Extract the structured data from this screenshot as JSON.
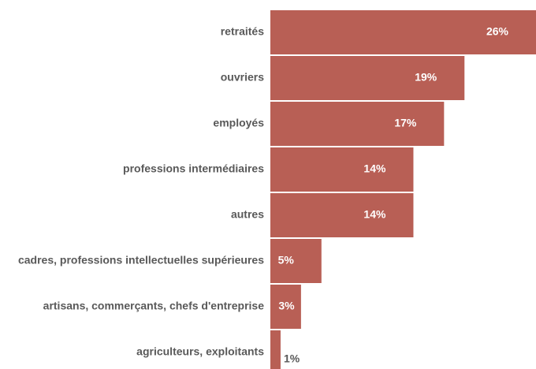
{
  "colors": {
    "bar": "#b85f55",
    "label_inside": "#ffffff",
    "label_outside": "#595959",
    "category_text": "#595959"
  },
  "chart_data": {
    "type": "bar",
    "orientation": "horizontal",
    "categories": [
      "retraités",
      "ouvriers",
      "employés",
      "professions intermédiaires",
      "autres",
      "cadres, professions intellectuelles supérieures",
      "artisans, commerçants, chefs d'entreprise",
      "agriculteurs, exploitants"
    ],
    "values": [
      26,
      19,
      17,
      14,
      14,
      5,
      3,
      1
    ],
    "value_labels": [
      "26%",
      "19%",
      "17%",
      "14%",
      "14%",
      "5%",
      "3%",
      "1%"
    ],
    "unit": "%",
    "xlim": [
      0,
      26
    ],
    "grid": false,
    "legend": "none"
  }
}
